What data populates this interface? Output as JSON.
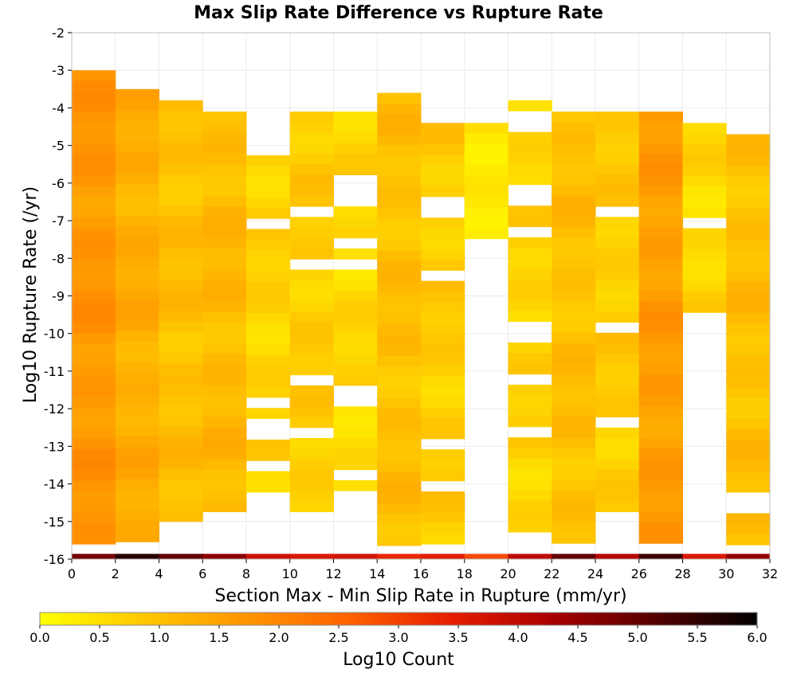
{
  "chart_data": {
    "type": "heatmap",
    "title": "Max Slip Rate Difference vs Rupture Rate",
    "xlabel": "Section Max - Min Slip Rate in Rupture (mm/yr)",
    "ylabel": "Log10 Rupture Rate (/yr)",
    "xlim": [
      0,
      32
    ],
    "ylim": [
      -16,
      -2
    ],
    "x_ticks": [
      0,
      2,
      4,
      6,
      8,
      10,
      12,
      14,
      16,
      18,
      20,
      22,
      24,
      26,
      28,
      30,
      32
    ],
    "y_ticks": [
      -2,
      -3,
      -4,
      -5,
      -6,
      -7,
      -8,
      -9,
      -10,
      -11,
      -12,
      -13,
      -14,
      -15,
      -16
    ],
    "x_bin_width": 2,
    "y_bin_height": 0.28,
    "colorbar": {
      "label": "Log10 Count",
      "range": [
        0,
        6
      ],
      "ticks": [
        "0.0",
        "0.5",
        "1.0",
        "1.5",
        "2.0",
        "2.5",
        "3.0",
        "3.5",
        "4.0",
        "4.5",
        "5.0",
        "5.5",
        "6.0"
      ],
      "colormap": [
        "#ffff00",
        "#ffc800",
        "#ff9600",
        "#ff6400",
        "#e61e00",
        "#aa0000",
        "#550000",
        "#000000"
      ]
    },
    "grid": true,
    "columns": [
      {
        "x": 0,
        "y_top": -3.0,
        "y_bottom": -15.7,
        "level": 1.7
      },
      {
        "x": 2,
        "y_top": -3.5,
        "y_bottom": -15.7,
        "level": 1.3
      },
      {
        "x": 4,
        "y_top": -3.8,
        "y_bottom": -15.0,
        "level": 1.0
      },
      {
        "x": 6,
        "y_top": -4.1,
        "y_bottom": -15.0,
        "level": 1.1
      },
      {
        "x": 8,
        "y_top": -4.7,
        "y_bottom": -14.4,
        "level": 0.7
      },
      {
        "x": 10,
        "y_top": -4.1,
        "y_bottom": -15.0,
        "level": 0.8
      },
      {
        "x": 12,
        "y_top": -4.1,
        "y_bottom": -14.2,
        "level": 0.6
      },
      {
        "x": 14,
        "y_top": -3.6,
        "y_bottom": -16.0,
        "level": 1.0
      },
      {
        "x": 16,
        "y_top": -4.4,
        "y_bottom": -15.7,
        "level": 0.8
      },
      {
        "x": 18,
        "y_top": -4.4,
        "y_bottom": -7.6,
        "level": 0.4
      },
      {
        "x": 20,
        "y_top": -3.8,
        "y_bottom": -15.4,
        "level": 0.7
      },
      {
        "x": 22,
        "y_top": -4.1,
        "y_bottom": -16.0,
        "level": 1.0
      },
      {
        "x": 24,
        "y_top": -4.1,
        "y_bottom": -14.9,
        "level": 0.8
      },
      {
        "x": 26,
        "y_top": -4.1,
        "y_bottom": -16.0,
        "level": 1.6
      },
      {
        "x": 28,
        "y_top": -4.4,
        "y_bottom": -9.6,
        "level": 0.6
      },
      {
        "x": 30,
        "y_top": -4.7,
        "y_bottom": -16.0,
        "level": 1.0
      }
    ],
    "gaps": [
      {
        "x": 8,
        "y": [
          -5.0,
          -7.1,
          -11.8,
          -12.6,
          -13.5,
          -14.6
        ]
      },
      {
        "x": 10,
        "y": [
          -6.7,
          -8.2,
          -11.2,
          -12.6
        ]
      },
      {
        "x": 12,
        "y": [
          -6.0,
          -6.5,
          -7.6,
          -8.2,
          -11.6,
          -13.8
        ]
      },
      {
        "x": 16,
        "y": [
          -6.6,
          -8.5,
          -12.9,
          -14.1
        ]
      },
      {
        "x": 20,
        "y": [
          -4.4,
          -6.3,
          -7.3,
          -9.9,
          -11.2,
          -12.6
        ]
      },
      {
        "x": 24,
        "y": [
          -6.7,
          -9.9,
          -12.3
        ]
      },
      {
        "x": 28,
        "y": [
          -7.0
        ]
      },
      {
        "x": 30,
        "y": [
          -14.5
        ]
      }
    ],
    "bottom_row": {
      "y": -16,
      "levels": [
        4.8,
        5.6,
        5.0,
        4.6,
        3.8,
        3.6,
        3.7,
        3.3,
        3.5,
        2.9,
        4.0,
        5.0,
        4.1,
        5.4,
        3.6,
        4.5
      ]
    }
  }
}
